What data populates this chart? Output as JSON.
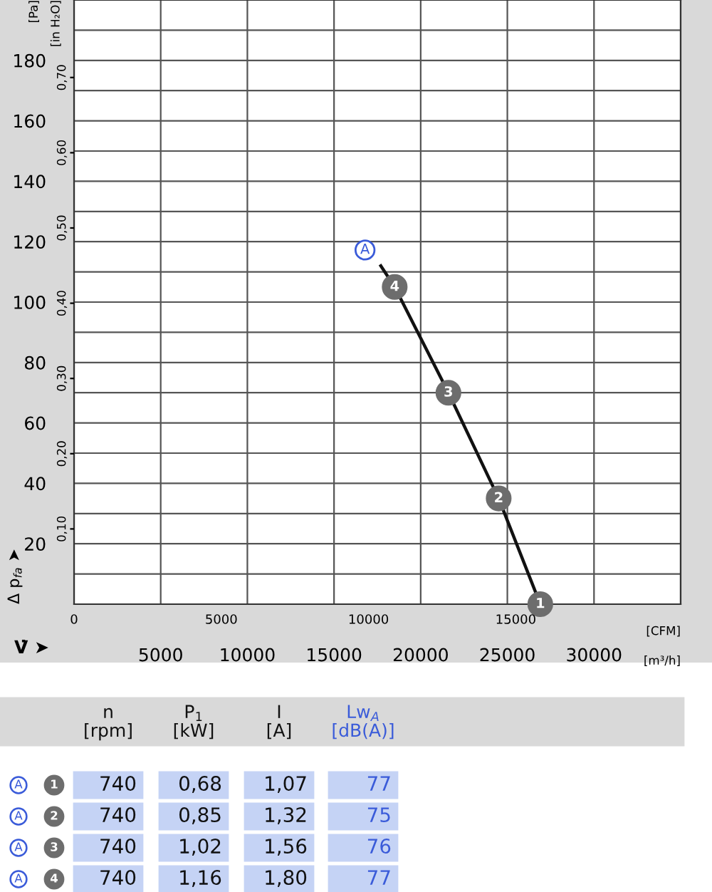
{
  "chart_data": [
    {
      "type": "line",
      "ylabel": "[Pa]",
      "y2label": "[in H₂O]",
      "xlabel": "[m³/h]",
      "x2label": "[CFM]",
      "xlim": [
        0,
        35000
      ],
      "xticks": [
        {
          "value": 0,
          "label": null
        },
        5000,
        10000,
        15000,
        20000,
        25000,
        30000,
        {
          "value": 35000,
          "label": null
        }
      ],
      "x2lim": [
        0,
        20600
      ],
      "x2ticks": [
        0,
        5000,
        10000,
        15000
      ],
      "ylim": [
        0,
        200
      ],
      "yticks": [
        {
          "value": 10,
          "label": null
        },
        20,
        {
          "value": 30,
          "label": null
        },
        40,
        {
          "value": 50,
          "label": null
        },
        60,
        {
          "value": 70,
          "label": null
        },
        80,
        {
          "value": 90,
          "label": null
        },
        100,
        {
          "value": 110,
          "label": null
        },
        120,
        {
          "value": 130,
          "label": null
        },
        140,
        {
          "value": 150,
          "label": null
        },
        160,
        {
          "value": 170,
          "label": null
        },
        180,
        {
          "value": 190,
          "label": null
        }
      ],
      "y2lim": [
        0,
        0.803
      ],
      "y2ticks": [
        {
          "value": 0.1,
          "label": "0,10"
        },
        {
          "value": 0.2,
          "label": "0,20"
        },
        {
          "value": 0.3,
          "label": "0,30"
        },
        {
          "value": 0.4,
          "label": "0,40"
        },
        {
          "value": 0.5,
          "label": "0,50"
        },
        {
          "value": 0.6,
          "label": "0,60"
        },
        {
          "value": 0.7,
          "label": "0,70"
        }
      ],
      "grid": true,
      "marker": "circle",
      "line_style": "solid",
      "series": [
        {
          "color": "#111111",
          "x": [
            17700,
            18500,
            21600,
            24500,
            26900
          ],
          "values": [
            112,
            105,
            70,
            35,
            0
          ]
        }
      ],
      "annotations": [
        "Δ p$_{fa}$ ➤",
        "V̇ ➤",
        {
          "text": "A",
          "x": 17700,
          "y": 112
        },
        {
          "text": "4",
          "x": 18500,
          "y": 105
        },
        {
          "text": "3",
          "x": 21600,
          "y": 70
        },
        {
          "text": "2",
          "x": 24500,
          "y": 35
        },
        {
          "text": "1",
          "x": 26900,
          "y": 0
        }
      ]
    },
    {
      "type": "other",
      "categories": [
        "n\n[rpm]",
        "P$_{1}$\n[kW]",
        "I\n[A]",
        "Lw$_{A}$\n[dB(A)]"
      ],
      "colors": [
        null,
        null,
        null,
        "#3a5bd9"
      ],
      "y_categories": [
        "A",
        "A",
        "A",
        "A"
      ],
      "y2_categories": [
        "1",
        "2",
        "3",
        "4"
      ],
      "annotations": [
        "740",
        "0,68",
        "1,07",
        "77",
        "740",
        "0,85",
        "1,32",
        "75",
        "740",
        "1,02",
        "1,56",
        "76",
        "740",
        "1,16",
        "1,80",
        "77"
      ]
    }
  ]
}
